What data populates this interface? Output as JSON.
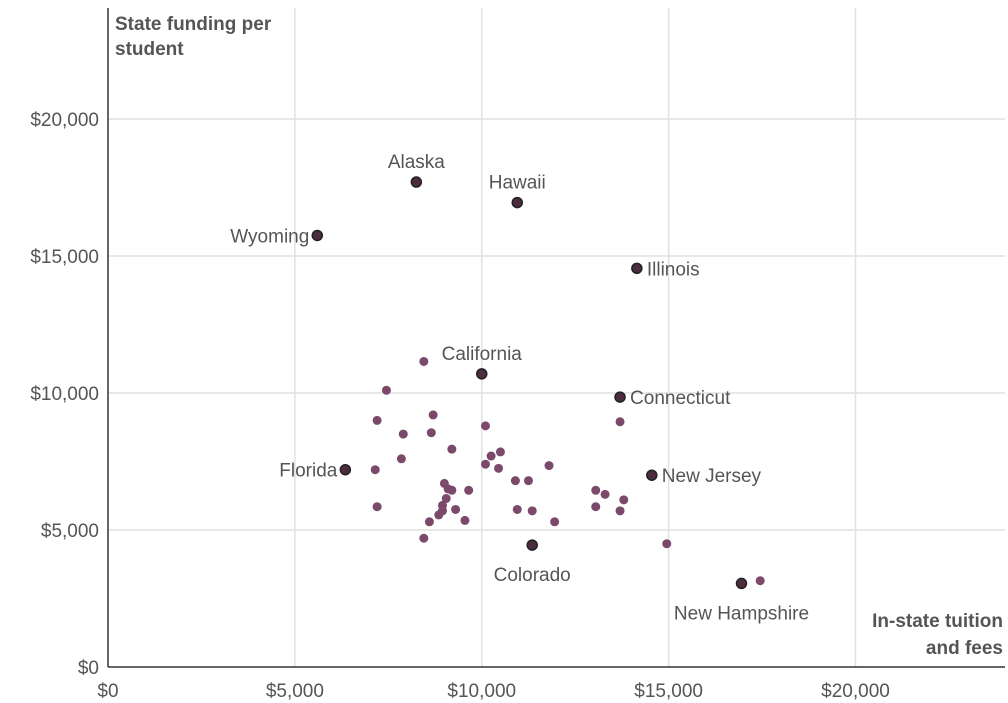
{
  "chart_data": {
    "type": "scatter",
    "ylabel": "State funding per student",
    "xlabel": "In-state tuition and fees",
    "xlim": [
      0,
      24000
    ],
    "ylim": [
      0,
      20000
    ],
    "x_ticks": [
      0,
      5000,
      10000,
      15000,
      20000
    ],
    "x_tick_labels": [
      "$0",
      "$5,000",
      "$10,000",
      "$15,000",
      "$20,000"
    ],
    "y_ticks": [
      0,
      5000,
      10000,
      15000,
      20000
    ],
    "y_tick_labels": [
      "$0",
      "$5,000",
      "$10,000",
      "$15,000",
      "$20,000"
    ],
    "grid": true,
    "colors": {
      "point": "#7b4a6a",
      "highlight": "#4d2c40",
      "highlight_stroke": "#222222",
      "grid": "#e1e1e1",
      "text": "#555555"
    },
    "labeled_points": [
      {
        "label": "Alaska",
        "x": 8250,
        "y": 17700,
        "label_pos": "above"
      },
      {
        "label": "Hawaii",
        "x": 10950,
        "y": 16950,
        "label_pos": "above"
      },
      {
        "label": "Wyoming",
        "x": 5600,
        "y": 15750,
        "label_pos": "left"
      },
      {
        "label": "Illinois",
        "x": 14150,
        "y": 14550,
        "label_pos": "right"
      },
      {
        "label": "California",
        "x": 10000,
        "y": 10700,
        "label_pos": "above"
      },
      {
        "label": "Connecticut",
        "x": 13700,
        "y": 9850,
        "label_pos": "right"
      },
      {
        "label": "Florida",
        "x": 6350,
        "y": 7200,
        "label_pos": "left"
      },
      {
        "label": "New Jersey",
        "x": 14550,
        "y": 7000,
        "label_pos": "right"
      },
      {
        "label": "Colorado",
        "x": 11350,
        "y": 4450,
        "label_pos": "below"
      },
      {
        "label": "New Hampshire",
        "x": 16950,
        "y": 3050,
        "label_pos": "below"
      }
    ],
    "points": [
      [
        8450,
        11150
      ],
      [
        7450,
        10100
      ],
      [
        7200,
        9000
      ],
      [
        8700,
        9200
      ],
      [
        7900,
        8500
      ],
      [
        8650,
        8550
      ],
      [
        10100,
        8800
      ],
      [
        9200,
        7950
      ],
      [
        10500,
        7850
      ],
      [
        10250,
        7700
      ],
      [
        7850,
        7600
      ],
      [
        10100,
        7400
      ],
      [
        10450,
        7250
      ],
      [
        11800,
        7350
      ],
      [
        7150,
        7200
      ],
      [
        9000,
        6700
      ],
      [
        10900,
        6800
      ],
      [
        11250,
        6800
      ],
      [
        9100,
        6500
      ],
      [
        9200,
        6450
      ],
      [
        9650,
        6450
      ],
      [
        13050,
        6450
      ],
      [
        13300,
        6300
      ],
      [
        13800,
        6100
      ],
      [
        9050,
        6150
      ],
      [
        8950,
        5900
      ],
      [
        7200,
        5850
      ],
      [
        9300,
        5750
      ],
      [
        8950,
        5700
      ],
      [
        10950,
        5750
      ],
      [
        11350,
        5700
      ],
      [
        13050,
        5850
      ],
      [
        13700,
        5700
      ],
      [
        8850,
        5550
      ],
      [
        8600,
        5300
      ],
      [
        9550,
        5350
      ],
      [
        11950,
        5300
      ],
      [
        8450,
        4700
      ],
      [
        14950,
        4500
      ],
      [
        17450,
        3150
      ],
      [
        13700,
        8950
      ]
    ]
  }
}
